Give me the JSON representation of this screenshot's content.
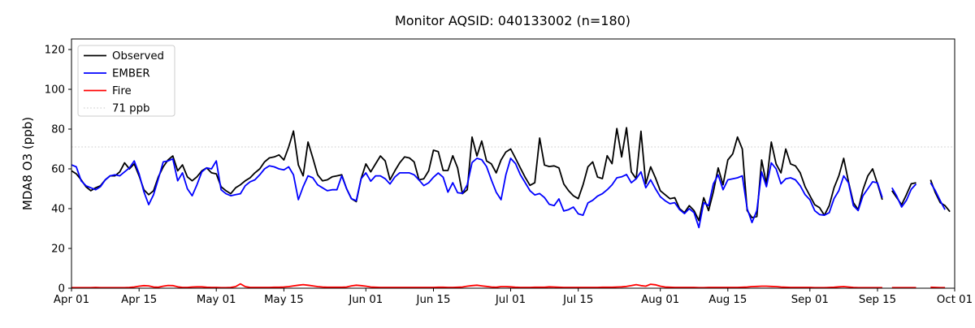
{
  "chart_data": {
    "type": "line",
    "title": "Monitor AQSID: 040133002 (n=180)",
    "ylabel": "MDA8 O3 (ppb)",
    "xlabel": "",
    "grid": false,
    "legend_position": "upper-left",
    "ylim": [
      0,
      125.3
    ],
    "y_ticks": [
      0,
      20,
      40,
      60,
      80,
      100,
      120
    ],
    "x_ticks": [
      {
        "day": 0,
        "label": "Apr 01"
      },
      {
        "day": 14,
        "label": "Apr 15"
      },
      {
        "day": 30,
        "label": "May 01"
      },
      {
        "day": 44,
        "label": "May 15"
      },
      {
        "day": 61,
        "label": "Jun 01"
      },
      {
        "day": 75,
        "label": "Jun 15"
      },
      {
        "day": 91,
        "label": "Jul 01"
      },
      {
        "day": 105,
        "label": "Jul 15"
      },
      {
        "day": 122,
        "label": "Aug 01"
      },
      {
        "day": 136,
        "label": "Aug 15"
      },
      {
        "day": 153,
        "label": "Sep 01"
      },
      {
        "day": 167,
        "label": "Sep 15"
      },
      {
        "day": 183,
        "label": "Oct 01"
      }
    ],
    "x_total_days": 183,
    "threshold": {
      "value": 71,
      "label": "71 ppb",
      "color": "#d3d3d3",
      "style": "dotted"
    },
    "legend": [
      {
        "label": "Observed",
        "color": "#000000",
        "style": "solid"
      },
      {
        "label": "EMBER",
        "color": "#0000ff",
        "style": "solid"
      },
      {
        "label": "Fire",
        "color": "#ff0000",
        "style": "solid"
      },
      {
        "label": "71 ppb",
        "color": "#d3d3d3",
        "style": "dotted"
      }
    ],
    "series": [
      {
        "name": "Observed",
        "color": "#000000",
        "values": [
          59,
          57.5,
          54.5,
          51,
          49,
          50.5,
          51.5,
          54.5,
          56.5,
          56.5,
          58.5,
          63,
          60,
          62.5,
          56.5,
          49.5,
          47,
          49,
          56,
          61,
          64.5,
          66.5,
          59,
          62,
          56,
          54,
          56,
          59,
          60.5,
          58,
          57.5,
          51,
          49,
          47.5,
          50.5,
          52,
          54,
          55.5,
          58,
          60,
          63.5,
          65.5,
          66,
          67,
          64.5,
          71,
          79,
          62,
          56.5,
          73.5,
          65.5,
          57,
          54,
          54.5,
          56,
          56.5,
          57,
          50,
          45,
          43.5,
          55,
          62.5,
          58.5,
          62.5,
          66.5,
          64,
          54.5,
          59,
          63,
          66,
          65.5,
          63.5,
          54.5,
          55,
          59,
          69.4,
          68.7,
          59.2,
          59.2,
          66.6,
          60.5,
          47.5,
          49.5,
          76,
          66.5,
          74,
          64,
          62.5,
          58,
          64.5,
          68.5,
          70,
          65.3,
          60.5,
          55.8,
          51.7,
          53,
          75.5,
          61.9,
          61.2,
          61.5,
          60.5,
          52.4,
          49,
          46.5,
          45,
          52,
          61,
          63.5,
          55.9,
          55.1,
          66.6,
          62.6,
          80.3,
          66,
          80.7,
          58.5,
          55,
          78.9,
          52.5,
          61,
          55.5,
          49,
          47,
          45,
          45.5,
          40,
          38,
          41.5,
          39,
          34,
          45.5,
          39,
          48.5,
          60.5,
          52,
          64.5,
          67.5,
          76,
          70,
          39,
          35.5,
          36,
          64.5,
          52.5,
          73.5,
          62.5,
          58,
          70,
          62.5,
          61.5,
          58,
          51,
          46.5,
          42,
          40.5,
          36.7,
          41.5,
          50.5,
          56.5,
          65.3,
          53.5,
          43,
          39.5,
          49.5,
          56.5,
          60,
          52.5,
          44.5,
          null,
          49,
          45.5,
          42,
          47,
          52.5,
          53,
          null,
          null,
          54.5,
          48,
          43,
          41.5,
          38.5
        ]
      },
      {
        "name": "EMBER",
        "color": "#0000ff",
        "values": [
          62,
          61,
          54,
          51.5,
          50.5,
          49.5,
          51,
          54.5,
          56.5,
          57,
          56.5,
          58.5,
          60.5,
          64,
          57.5,
          48.5,
          42,
          47,
          55,
          63.5,
          64,
          65,
          54,
          58,
          50,
          46.5,
          52,
          58.5,
          60.5,
          60,
          64,
          49.5,
          47.5,
          46.5,
          47,
          47.5,
          51.5,
          53.5,
          54.5,
          57,
          60,
          61.5,
          61,
          60,
          59.5,
          61,
          57,
          44.5,
          51,
          56.5,
          55.5,
          52,
          50.5,
          49,
          49.5,
          49.5,
          56.5,
          50,
          45,
          44,
          55,
          58,
          53.8,
          56.5,
          56.5,
          55,
          52.4,
          55.9,
          58,
          58,
          58,
          57,
          54.4,
          51.6,
          53,
          55.8,
          57.9,
          55.8,
          48.3,
          53,
          48,
          47.7,
          52,
          63.2,
          65.3,
          64.6,
          61.2,
          54.4,
          48.3,
          44.5,
          57,
          65.3,
          62.6,
          57.1,
          53.1,
          49,
          46.9,
          47.6,
          45.6,
          42.2,
          41.5,
          44.9,
          38.8,
          39.5,
          40.8,
          37.4,
          36.7,
          42.9,
          44.2,
          46.3,
          47.5,
          49.5,
          52,
          55.5,
          56,
          57.2,
          53,
          55,
          58.5,
          50.5,
          54.5,
          50,
          46,
          44,
          42.5,
          43,
          39.5,
          37.5,
          40,
          38,
          30.5,
          43,
          41.5,
          52.5,
          57,
          49.5,
          54.5,
          55,
          55.5,
          56.5,
          40,
          33,
          39,
          58.5,
          51,
          63,
          60,
          52.5,
          55,
          55.5,
          54.5,
          51.5,
          47,
          44.5,
          39,
          37,
          36.7,
          38,
          45,
          49,
          56.5,
          53,
          41.5,
          39,
          46.5,
          50,
          53.5,
          53,
          45.5,
          null,
          50.5,
          46.3,
          40.8,
          44.2,
          49.7,
          52.4,
          null,
          null,
          53,
          49,
          44,
          39.5,
          null
        ]
      },
      {
        "name": "Fire",
        "color": "#ff0000",
        "values": [
          0.3,
          0.3,
          0.3,
          0.3,
          0.3,
          0.4,
          0.3,
          0.3,
          0.3,
          0.3,
          0.3,
          0.3,
          0.4,
          0.6,
          1.0,
          1.3,
          1.2,
          0.6,
          0.5,
          1.0,
          1.4,
          1.3,
          0.7,
          0.4,
          0.4,
          0.6,
          0.7,
          0.7,
          0.5,
          0.4,
          0.4,
          0.3,
          0.3,
          0.4,
          0.8,
          2.2,
          0.8,
          0.4,
          0.4,
          0.4,
          0.4,
          0.4,
          0.5,
          0.5,
          0.6,
          0.8,
          1.2,
          1.5,
          1.8,
          1.5,
          1.2,
          0.8,
          0.6,
          0.5,
          0.5,
          0.5,
          0.5,
          0.6,
          1.2,
          1.5,
          1.3,
          1.0,
          0.6,
          0.5,
          0.4,
          0.4,
          0.4,
          0.4,
          0.4,
          0.4,
          0.4,
          0.4,
          0.4,
          0.4,
          0.4,
          0.4,
          0.5,
          0.5,
          0.4,
          0.4,
          0.5,
          0.6,
          1.0,
          1.3,
          1.5,
          1.2,
          0.9,
          0.6,
          0.5,
          0.8,
          0.8,
          0.7,
          0.5,
          0.4,
          0.4,
          0.4,
          0.5,
          0.5,
          0.5,
          0.7,
          0.6,
          0.5,
          0.4,
          0.4,
          0.4,
          0.4,
          0.4,
          0.4,
          0.4,
          0.4,
          0.5,
          0.5,
          0.5,
          0.6,
          0.7,
          0.9,
          1.3,
          1.8,
          1.3,
          1.0,
          2.0,
          1.7,
          1.0,
          0.6,
          0.5,
          0.4,
          0.4,
          0.4,
          0.4,
          0.4,
          0.3,
          0.3,
          0.4,
          0.4,
          0.4,
          0.4,
          0.4,
          0.4,
          0.4,
          0.5,
          0.6,
          0.8,
          0.9,
          1.0,
          1.0,
          0.9,
          0.8,
          0.6,
          0.5,
          0.4,
          0.4,
          0.4,
          0.4,
          0.4,
          0.3,
          0.3,
          0.3,
          0.4,
          0.5,
          0.7,
          0.8,
          0.6,
          0.4,
          0.3,
          0.3,
          0.3,
          0.3,
          0.3,
          0.3,
          null,
          0.3,
          0.3,
          0.3,
          0.3,
          0.3,
          0.3,
          null,
          null,
          0.5,
          0.4,
          0.3,
          0.3,
          null
        ]
      }
    ]
  }
}
